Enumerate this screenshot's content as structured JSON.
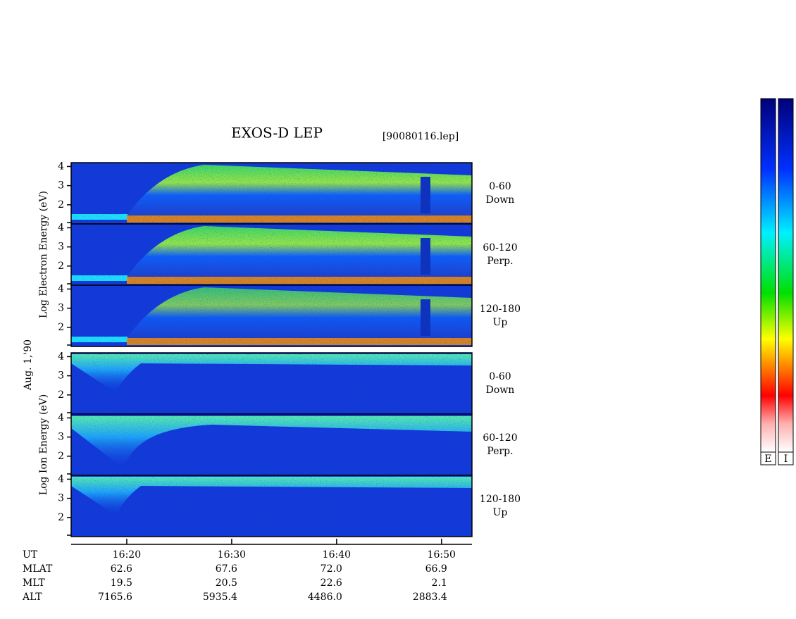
{
  "chart_data": {
    "type": "spectrogram",
    "title": "EXOS-D LEP",
    "subtitle": "[90080116.lep]",
    "date_label": "Aug. 1,'90",
    "ylim": [
      1,
      4.2
    ],
    "yticks": [
      2,
      3,
      4
    ],
    "xlim": [
      974.7,
      1012.9
    ],
    "xticks": [
      {
        "value": 980,
        "label": "16:20"
      },
      {
        "value": 990,
        "label": "16:30"
      },
      {
        "value": 1000,
        "label": "16:40"
      },
      {
        "value": 1010,
        "label": "16:50"
      }
    ],
    "x_axis_label": "UT",
    "groups": [
      {
        "species": "electron",
        "ylabel": "Log Electron Energy (eV)",
        "panels": [
          {
            "pitch": "0-60",
            "direction": "Down"
          },
          {
            "pitch": "60-120",
            "direction": "Perp."
          },
          {
            "pitch": "120-180",
            "direction": "Up"
          }
        ]
      },
      {
        "species": "ion",
        "ylabel": "Log Ion Energy (eV)",
        "panels": [
          {
            "pitch": "0-60",
            "direction": "Down"
          },
          {
            "pitch": "60-120",
            "direction": "Perp."
          },
          {
            "pitch": "120-180",
            "direction": "Up"
          }
        ]
      }
    ],
    "ephemeris": [
      {
        "name": "MLAT",
        "values": [
          "62.6",
          "67.6",
          "72.0",
          "66.9"
        ]
      },
      {
        "name": "MLT",
        "values": [
          "19.5",
          "20.5",
          "22.6",
          "2.1"
        ]
      },
      {
        "name": "ALT",
        "values": [
          "7165.6",
          "5935.4",
          "4486.0",
          "2883.4"
        ]
      }
    ],
    "colorbar_labels": [
      "E",
      "I"
    ]
  }
}
